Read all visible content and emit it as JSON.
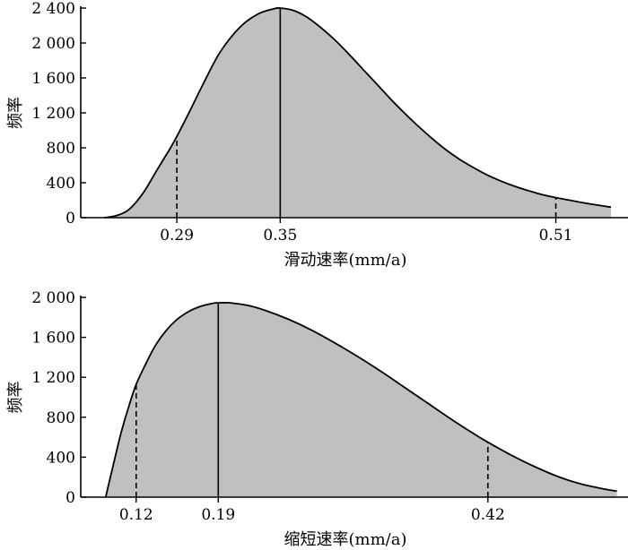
{
  "chart_data": [
    {
      "type": "area",
      "xlabel": "滑动速率(mm/a)",
      "ylabel": "频率",
      "ylim": [
        0,
        2400
      ],
      "yticks": [
        0,
        400,
        800,
        1200,
        1600,
        2000,
        2400
      ],
      "ytick_labels": [
        "0",
        "400",
        "800",
        "1 200",
        "1 600",
        "2 000",
        "2 400"
      ],
      "xlim": [
        0.2342,
        0.5519
      ],
      "xticks": [
        0.29,
        0.35,
        0.51
      ],
      "xtick_labels": [
        "0.29",
        "0.35",
        "0.51"
      ],
      "x": [
        0.248,
        0.255,
        0.262,
        0.27,
        0.278,
        0.286,
        0.29,
        0.298,
        0.306,
        0.314,
        0.322,
        0.33,
        0.338,
        0.346,
        0.35,
        0.358,
        0.366,
        0.374,
        0.382,
        0.39,
        0.398,
        0.406,
        0.414,
        0.422,
        0.43,
        0.438,
        0.446,
        0.454,
        0.462,
        0.47,
        0.478,
        0.486,
        0.494,
        0.502,
        0.51,
        0.518,
        0.526,
        0.534,
        0.542
      ],
      "y": [
        0,
        25,
        90,
        270,
        530,
        790,
        930,
        1240,
        1560,
        1860,
        2080,
        2240,
        2340,
        2390,
        2400,
        2370,
        2290,
        2170,
        2030,
        1870,
        1700,
        1530,
        1360,
        1200,
        1050,
        910,
        780,
        670,
        575,
        490,
        420,
        360,
        310,
        265,
        230,
        200,
        170,
        145,
        120
      ],
      "markers": [
        {
          "x": 0.29,
          "style": "dashed"
        },
        {
          "x": 0.35,
          "style": "solid"
        },
        {
          "x": 0.51,
          "style": "dashed"
        }
      ]
    },
    {
      "type": "area",
      "xlabel": "缩短速率(mm/a)",
      "ylabel": "频率",
      "ylim": [
        0,
        2000
      ],
      "yticks": [
        0,
        400,
        800,
        1200,
        1600,
        2000
      ],
      "ytick_labels": [
        "0",
        "400",
        "800",
        "1 200",
        "1 600",
        "2 000"
      ],
      "xlim": [
        0.0727,
        0.5395
      ],
      "xticks": [
        0.12,
        0.19,
        0.42
      ],
      "xtick_labels": [
        "0.12",
        "0.19",
        "0.42"
      ],
      "x": [
        0.094,
        0.1,
        0.107,
        0.114,
        0.12,
        0.128,
        0.136,
        0.145,
        0.155,
        0.165,
        0.175,
        0.185,
        0.19,
        0.2,
        0.215,
        0.23,
        0.25,
        0.27,
        0.29,
        0.31,
        0.33,
        0.35,
        0.37,
        0.39,
        0.41,
        0.42,
        0.44,
        0.46,
        0.48,
        0.5,
        0.52,
        0.53
      ],
      "y": [
        0,
        300,
        640,
        920,
        1130,
        1330,
        1510,
        1660,
        1780,
        1860,
        1910,
        1940,
        1945,
        1945,
        1920,
        1870,
        1780,
        1670,
        1540,
        1400,
        1250,
        1090,
        930,
        770,
        620,
        550,
        420,
        305,
        205,
        130,
        80,
        60
      ],
      "markers": [
        {
          "x": 0.12,
          "style": "dashed"
        },
        {
          "x": 0.19,
          "style": "solid"
        },
        {
          "x": 0.42,
          "style": "dashed"
        }
      ]
    }
  ]
}
